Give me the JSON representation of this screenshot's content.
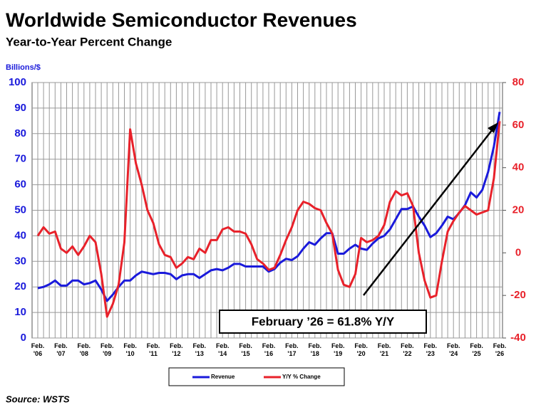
{
  "chart_data": {
    "type": "line",
    "title": "Worldwide Semiconductor Revenues",
    "subtitle": "Year-to-Year Percent Change",
    "y_axis_label": "Billions/$",
    "annotation": "February ’26 = 61.8% Y/Y",
    "source": "Source: WSTS",
    "categories": [
      "Feb. '06",
      null,
      null,
      null,
      "Feb. '07",
      null,
      null,
      null,
      "Feb. '08",
      null,
      null,
      null,
      "Feb. '09",
      null,
      null,
      null,
      "Feb. '10",
      null,
      null,
      null,
      "Feb. '11",
      null,
      null,
      null,
      "Feb. '12",
      null,
      null,
      null,
      "Feb. '13",
      null,
      null,
      null,
      "Feb. '14",
      null,
      null,
      null,
      "Feb. '15",
      null,
      null,
      null,
      "Feb. '16",
      null,
      null,
      null,
      "Feb. '17",
      null,
      null,
      null,
      "Feb. '18",
      null,
      null,
      null,
      "Feb. '19",
      null,
      null,
      null,
      "Feb. '20",
      null,
      null,
      null,
      "Feb. '21",
      null,
      null,
      null,
      "Feb. '22",
      null,
      null,
      null,
      "Feb. '23",
      null,
      null,
      null,
      "Feb. '24",
      null,
      null,
      null,
      "Feb. '25",
      null,
      null,
      null,
      "Feb. '26"
    ],
    "series": [
      {
        "name": "Revenue",
        "color": "#1a1adb",
        "values": [
          19.5,
          20,
          21,
          22.5,
          20.5,
          20.5,
          22.5,
          22.5,
          21,
          21.5,
          22.5,
          19,
          14.5,
          17,
          20,
          22.5,
          22.5,
          24.5,
          26,
          25.5,
          25,
          25.5,
          25.5,
          25,
          23,
          24.5,
          25,
          25,
          23.5,
          25,
          26.5,
          27,
          26.5,
          27.5,
          29,
          29,
          28,
          28,
          28,
          28,
          26,
          27,
          29.5,
          31,
          30.5,
          32,
          35,
          37.5,
          36.5,
          39,
          41,
          41,
          33,
          33,
          35,
          36.5,
          35,
          34.5,
          37,
          39,
          40,
          42.5,
          46.5,
          50.5,
          50.5,
          51.5,
          47.5,
          44,
          39.5,
          41,
          44,
          47.5,
          46.5,
          49,
          52,
          57,
          55,
          58,
          65,
          75,
          88.5
        ]
      },
      {
        "name": "Y/Y % Change",
        "color": "#e8212a",
        "axis": "y2",
        "values": [
          8,
          12,
          9,
          10,
          2,
          0,
          3,
          -1,
          3,
          8,
          5,
          -10,
          -30,
          -24,
          -15,
          5,
          58,
          42,
          32,
          20,
          14,
          4,
          -1,
          -2,
          -7,
          -5,
          -2,
          -3,
          2,
          0,
          6,
          6,
          11,
          12,
          10,
          10,
          9,
          4,
          -3,
          -5,
          -8,
          -7,
          -1,
          6,
          12,
          20,
          24,
          23,
          21,
          20,
          14,
          9,
          -8,
          -15,
          -16,
          -10,
          7,
          5,
          6,
          8,
          13,
          24,
          29,
          27,
          28,
          22,
          0,
          -13,
          -21,
          -20,
          -4,
          10,
          15,
          19,
          22,
          20,
          18,
          19,
          20,
          35,
          61.8
        ]
      }
    ],
    "ylim": [
      0,
      100
    ],
    "yticks": [
      0,
      10,
      20,
      30,
      40,
      50,
      60,
      70,
      80,
      90,
      100
    ],
    "y2lim": [
      -40,
      80
    ],
    "y2ticks": [
      -40,
      -20,
      0,
      20,
      40,
      60,
      80
    ],
    "grid": true
  }
}
